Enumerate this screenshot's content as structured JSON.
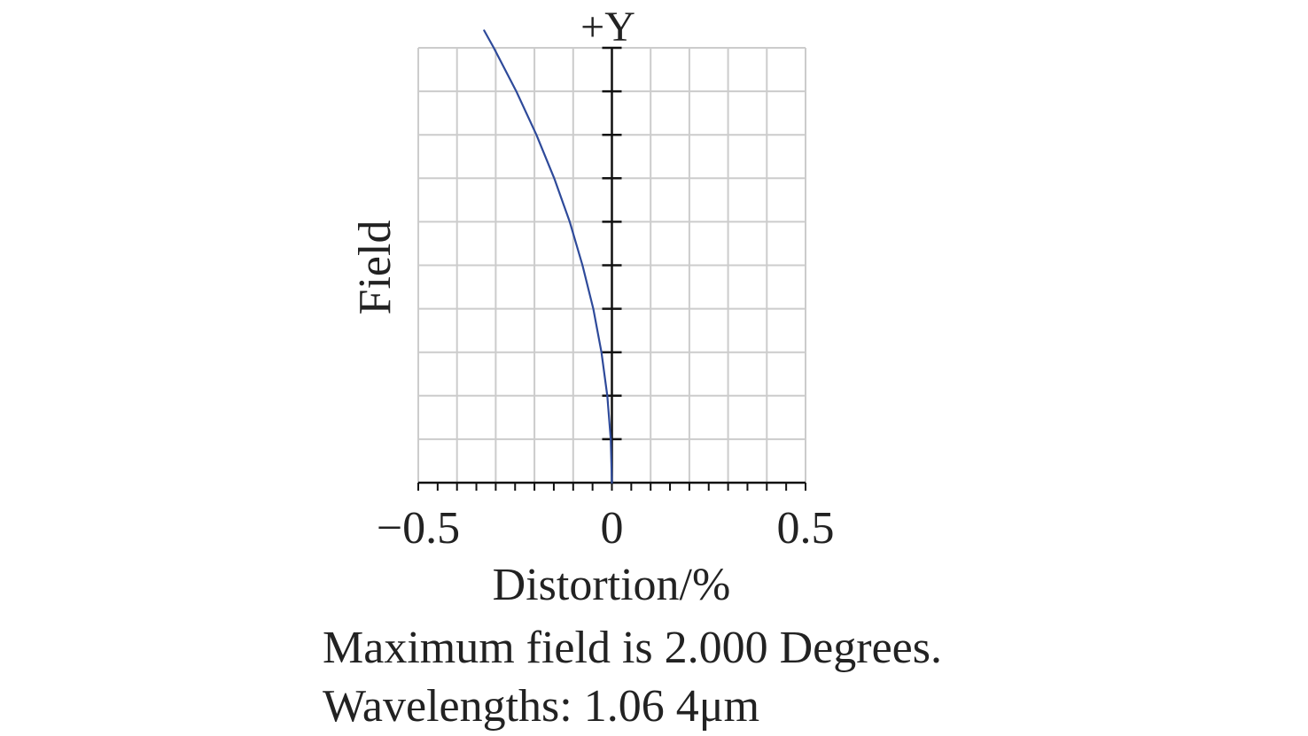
{
  "chart_data": {
    "type": "line",
    "title": "+Y",
    "xlabel": "Distortion/%",
    "ylabel": "Field",
    "xlim": [
      -0.5,
      0.5
    ],
    "ylim": [
      0,
      1
    ],
    "x_ticks": [
      {
        "value": -0.5,
        "label": "−0.5"
      },
      {
        "value": 0,
        "label": "0"
      },
      {
        "value": 0.5,
        "label": "0.5"
      }
    ],
    "x_minor_step": 0.05,
    "x_grid_step": 0.1,
    "y_grid_step": 0.1,
    "grid": true,
    "series": [
      {
        "color": "#2e4a9a",
        "x": [
          0,
          -0.003,
          -0.012,
          -0.027,
          -0.048,
          -0.076,
          -0.109,
          -0.149,
          -0.195,
          -0.247,
          -0.305,
          -0.33
        ],
        "y": [
          0,
          0.1,
          0.2,
          0.3,
          0.4,
          0.5,
          0.6,
          0.7,
          0.8,
          0.9,
          1.0,
          1.04
        ]
      }
    ]
  },
  "captions": {
    "line1": "Maximum field is 2.000 Degrees.",
    "line2": "Wavelengths: 1.06 4μm"
  },
  "colors": {
    "grid": "#cccccc",
    "axis": "#111111",
    "curve": "#2e4a9a",
    "text": "#222222"
  }
}
